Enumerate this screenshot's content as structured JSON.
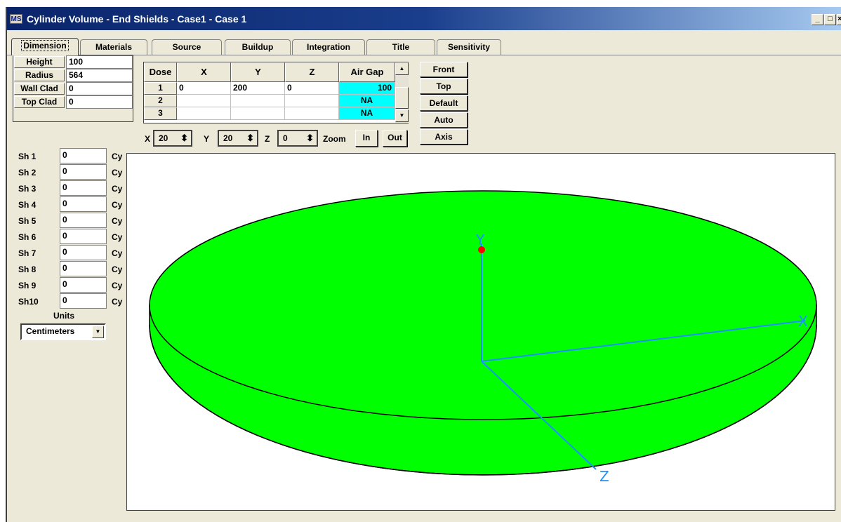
{
  "window": {
    "title": "Cylinder Volume - End Shields - Case1 - Case 1",
    "app_icon_text": "MS",
    "minimize": "_",
    "maximize": "□",
    "close": "×"
  },
  "tabs": [
    {
      "label": "Dimension",
      "active": true
    },
    {
      "label": "Materials"
    },
    {
      "label": "Source"
    },
    {
      "label": "Buildup"
    },
    {
      "label": "Integration"
    },
    {
      "label": "Title"
    },
    {
      "label": "Sensitivity"
    }
  ],
  "dimensions": {
    "height": {
      "label": "Height",
      "value": "100"
    },
    "radius": {
      "label": "Radius",
      "value": "564"
    },
    "wall_clad": {
      "label": "Wall Clad",
      "value": "0"
    },
    "top_clad": {
      "label": "Top Clad",
      "value": "0"
    }
  },
  "dose_grid": {
    "headers": [
      "Dose",
      "X",
      "Y",
      "Z",
      "Air Gap"
    ],
    "rows": [
      {
        "num": "1",
        "x": "0",
        "y": "200",
        "z": "0",
        "air_gap": "100"
      },
      {
        "num": "2",
        "x": "",
        "y": "",
        "z": "",
        "air_gap": "NA"
      },
      {
        "num": "3",
        "x": "",
        "y": "",
        "z": "",
        "air_gap": "NA"
      }
    ],
    "scroll_up": "▲",
    "scroll_down": "▼"
  },
  "view_buttons": {
    "front": "Front",
    "top": "Top",
    "default": "Default",
    "auto": "Auto",
    "axis": "Axis"
  },
  "rotation": {
    "x_label": "X",
    "x_value": "20",
    "y_label": "Y",
    "y_value": "20",
    "z_label": "Z",
    "z_value": "0",
    "spin_arrows": "⬍",
    "zoom_label": "Zoom",
    "zoom_in": "In",
    "zoom_out": "Out"
  },
  "shields": [
    {
      "label": "Sh 1",
      "value": "0",
      "unit": "Cy"
    },
    {
      "label": "Sh 2",
      "value": "0",
      "unit": "Cy"
    },
    {
      "label": "Sh 3",
      "value": "0",
      "unit": "Cy"
    },
    {
      "label": "Sh 4",
      "value": "0",
      "unit": "Cy"
    },
    {
      "label": "Sh 5",
      "value": "0",
      "unit": "Cy"
    },
    {
      "label": "Sh 6",
      "value": "0",
      "unit": "Cy"
    },
    {
      "label": "Sh 7",
      "value": "0",
      "unit": "Cy"
    },
    {
      "label": "Sh 8",
      "value": "0",
      "unit": "Cy"
    },
    {
      "label": "Sh 9",
      "value": "0",
      "unit": "Cy"
    },
    {
      "label": "Sh10",
      "value": "0",
      "unit": "Cy"
    }
  ],
  "units": {
    "label": "Units",
    "selected": "Centimeters",
    "dropdown_arrow": "▼"
  },
  "viewport": {
    "axis_labels": {
      "x": "X",
      "y": "Y",
      "z": "Z"
    },
    "colors": {
      "cylinder_fill": "#00FF00",
      "axis": "#1E90FF",
      "dose_point": "#FF0000",
      "cyan_cell": "#00FFFF"
    }
  }
}
